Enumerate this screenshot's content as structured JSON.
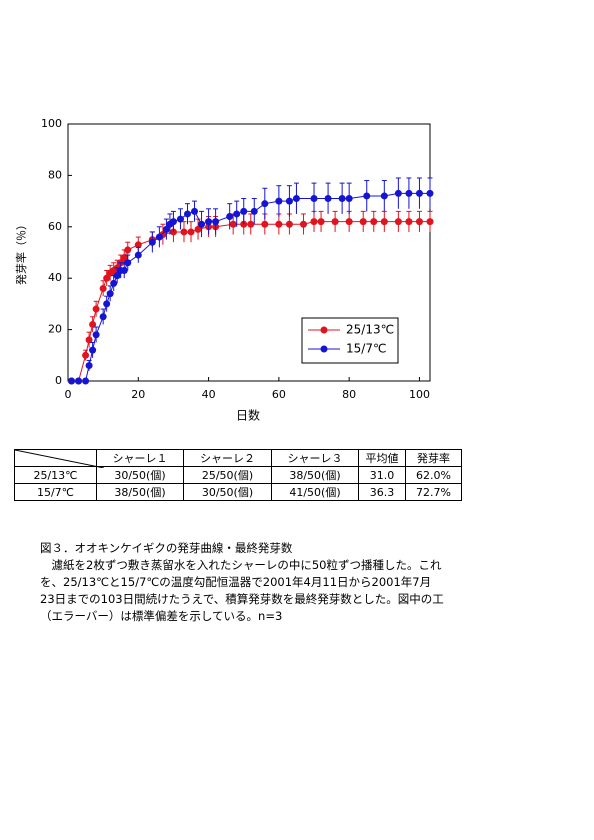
{
  "chart_data": {
    "type": "line",
    "ylabel": "発芽率（％）",
    "xlabel": "日数",
    "xlim": [
      0,
      103
    ],
    "xticks": [
      0,
      20,
      40,
      60,
      80,
      100
    ],
    "ylim": [
      0,
      100
    ],
    "yticks": [
      0,
      20,
      40,
      60,
      80,
      100
    ],
    "legend": "lower right",
    "series": [
      {
        "name": "25/13℃",
        "color": "#e0141e",
        "x": [
          1,
          3,
          5,
          6,
          7,
          8,
          10,
          11,
          12,
          13,
          14,
          15,
          16,
          17,
          20,
          24,
          27,
          30,
          33,
          35,
          37,
          40,
          42,
          47,
          50,
          52,
          56,
          60,
          63,
          67,
          70,
          72,
          76,
          80,
          84,
          87,
          90,
          94,
          97,
          100,
          103
        ],
        "values": [
          0,
          0,
          10,
          16,
          22,
          28,
          36,
          40,
          42,
          43,
          44,
          46,
          48,
          51,
          53,
          55,
          57,
          58,
          58,
          58,
          59,
          60,
          60,
          61,
          61,
          61,
          61,
          61,
          61,
          61,
          62,
          62,
          62,
          62,
          62,
          62,
          62,
          62,
          62,
          62,
          62
        ],
        "errors": [
          0,
          0,
          2,
          3,
          3,
          3,
          3,
          3,
          3,
          3,
          3,
          3,
          3,
          3,
          3,
          3,
          4,
          4,
          4,
          4,
          4,
          4,
          4,
          4,
          4,
          4,
          4,
          4,
          4,
          4,
          4,
          4,
          4,
          4,
          4,
          4,
          4,
          4,
          4,
          4,
          4
        ]
      },
      {
        "name": "15/7℃",
        "color": "#1414d2",
        "x": [
          1,
          3,
          5,
          6,
          7,
          8,
          10,
          11,
          12,
          13,
          14,
          15,
          16,
          17,
          20,
          24,
          26,
          28,
          29,
          30,
          32,
          34,
          36,
          38,
          40,
          42,
          46,
          48,
          50,
          53,
          56,
          60,
          63,
          65,
          70,
          74,
          78,
          80,
          85,
          90,
          94,
          97,
          100,
          103
        ],
        "values": [
          0,
          0,
          0,
          6,
          12,
          18,
          25,
          30,
          34,
          38,
          41,
          43,
          43,
          46,
          49,
          54,
          56,
          59,
          61,
          62,
          63,
          65,
          66,
          61,
          62,
          62,
          64,
          65,
          66,
          66,
          69,
          70,
          70,
          71,
          71,
          71,
          71,
          71,
          72,
          72,
          73,
          73,
          73,
          73
        ],
        "errors": [
          0,
          0,
          0,
          2,
          3,
          3,
          3,
          3,
          3,
          3,
          3,
          3,
          3,
          3,
          3,
          4,
          4,
          4,
          4,
          4,
          4,
          4,
          4,
          5,
          5,
          5,
          5,
          5,
          5,
          5,
          6,
          6,
          6,
          6,
          6,
          6,
          6,
          6,
          6,
          6,
          6,
          6,
          6,
          6
        ]
      }
    ]
  },
  "table": {
    "headers": [
      "シャーレ１",
      "シャーレ２",
      "シャーレ３",
      "平均値",
      "発芽率"
    ],
    "rows": [
      [
        "25/13℃",
        "30/50(個)",
        "25/50(個)",
        "38/50(個)",
        "31.0",
        "62.0%"
      ],
      [
        "15/7℃",
        "38/50(個)",
        "30/50(個)",
        "41/50(個)",
        "36.3",
        "72.7%"
      ]
    ]
  },
  "caption": {
    "title": "図３．オオキンケイギクの発芽曲線・最終発芽数",
    "lines": [
      "　濾紙を2枚ずつ敷き蒸留水を入れたシャーレの中に50粒ずつ播種した。これ",
      "を、25/13℃と15/7℃の温度勾配恒温器で2001年4月11日から2001年7月",
      "23日までの103日間続けたうえで、積算発芽数を最終発芽数とした。図中の工",
      "（エラーバー）は標準偏差を示している。n=3"
    ]
  }
}
